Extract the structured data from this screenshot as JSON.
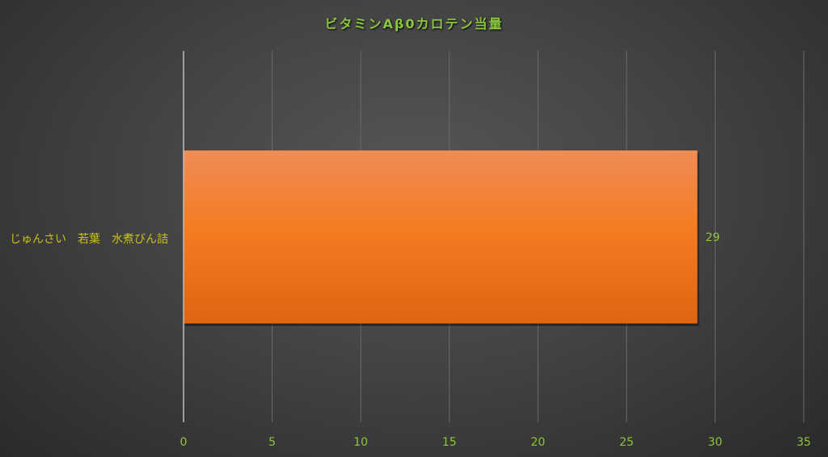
{
  "chart_data": {
    "type": "bar",
    "orientation": "horizontal",
    "title": "ビタミンAβ0カロテン当量",
    "categories": [
      "じゅんさい　若葉　水煮びん詰"
    ],
    "values": [
      29
    ],
    "data_labels": [
      "29"
    ],
    "xlim": [
      0,
      35
    ],
    "xticks": [
      0,
      5,
      10,
      15,
      20,
      25,
      30,
      35
    ],
    "grid": true,
    "legend": "none",
    "colors": {
      "bar_top": "#ef8c56",
      "bar_mid": "#f47c22",
      "bar_bottom": "#e06412",
      "title": "#8cc63f",
      "tick_labels": "#8cc63f",
      "category_label": "#c8c01e",
      "grid": "#6a6a6a"
    }
  }
}
